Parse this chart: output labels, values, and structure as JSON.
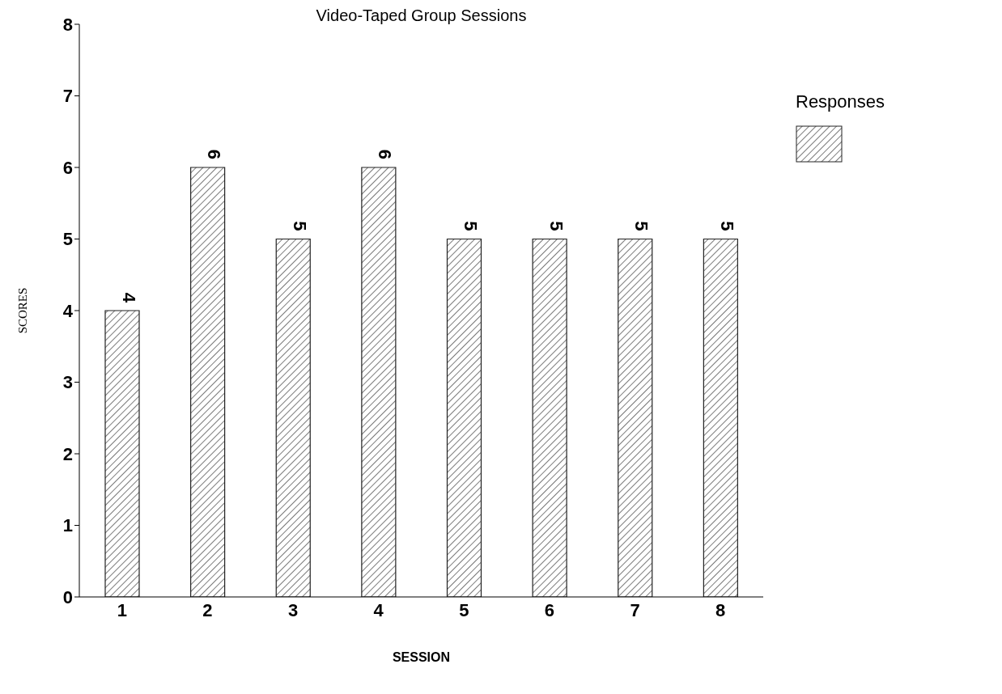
{
  "chart_data": {
    "type": "bar",
    "title": "Video-Taped Group Sessions",
    "xlabel": "SESSION",
    "ylabel": "SCORES",
    "categories": [
      "1",
      "2",
      "3",
      "4",
      "5",
      "6",
      "7",
      "8"
    ],
    "series": [
      {
        "name": "Responses",
        "color": "#222222",
        "values": [
          4,
          6,
          5,
          6,
          5,
          5,
          5,
          5
        ]
      }
    ],
    "ylim": [
      0,
      8
    ],
    "yticks": [
      0,
      1,
      2,
      3,
      4,
      5,
      6,
      7,
      8
    ],
    "grid": false,
    "legend": "top right",
    "data_labels": true
  }
}
